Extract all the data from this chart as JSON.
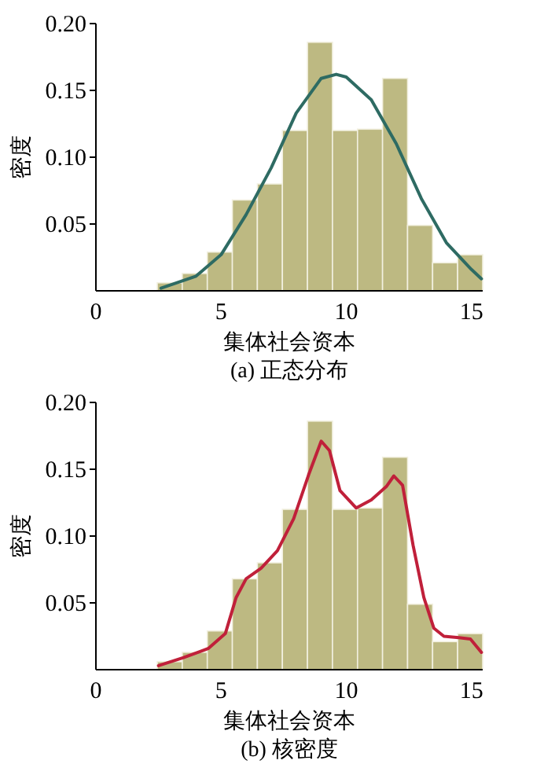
{
  "chart_data": [
    {
      "type": "histogram",
      "xlabel": "集体社会资本",
      "ylabel": "密度",
      "annotations": [
        "(a) 正态分布"
      ],
      "xlim": [
        0,
        15.45
      ],
      "ylim": [
        0,
        0.2
      ],
      "xticks": [
        0,
        5,
        10,
        15
      ],
      "yticks": [
        {
          "value": 0.05,
          "label": "0.05"
        },
        {
          "value": 0.1,
          "label": "0.10"
        },
        {
          "value": 0.15,
          "label": "0.15"
        },
        {
          "value": 0.2,
          "label": "0.20"
        }
      ],
      "grid": false,
      "bins": [
        2.45,
        3.45,
        4.45,
        5.45,
        6.45,
        7.45,
        8.45,
        9.45,
        10.45,
        11.45,
        12.45,
        13.45,
        14.45,
        15.45
      ],
      "series": [
        {
          "color": "#bdb982",
          "values": [
            0.006,
            0.013,
            0.029,
            0.068,
            0.08,
            0.12,
            0.186,
            0.12,
            0.121,
            0.159,
            0.049,
            0.021,
            0.027
          ]
        },
        {
          "type": "line",
          "color": "#2e6b63",
          "x": [
            2.6,
            4,
            5,
            6,
            7,
            8,
            9,
            9.6,
            10,
            11,
            12,
            13,
            14,
            15,
            15.4
          ],
          "values": [
            0.002,
            0.011,
            0.027,
            0.057,
            0.092,
            0.133,
            0.159,
            0.162,
            0.16,
            0.143,
            0.11,
            0.069,
            0.036,
            0.016,
            0.009
          ]
        }
      ]
    },
    {
      "type": "histogram",
      "xlabel": "集体社会资本",
      "ylabel": "密度",
      "annotations": [
        "(b) 核密度"
      ],
      "xlim": [
        0,
        15.45
      ],
      "ylim": [
        0,
        0.2
      ],
      "xticks": [
        0,
        5,
        10,
        15
      ],
      "yticks": [
        {
          "value": 0.05,
          "label": "0.05"
        },
        {
          "value": 0.1,
          "label": "0.10"
        },
        {
          "value": 0.15,
          "label": "0.15"
        },
        {
          "value": 0.2,
          "label": "0.20"
        }
      ],
      "grid": false,
      "bins": [
        2.45,
        3.45,
        4.45,
        5.45,
        6.45,
        7.45,
        8.45,
        9.45,
        10.45,
        11.45,
        12.45,
        13.45,
        14.45,
        15.45
      ],
      "series": [
        {
          "color": "#bdb982",
          "values": [
            0.006,
            0.013,
            0.029,
            0.068,
            0.08,
            0.12,
            0.186,
            0.12,
            0.121,
            0.159,
            0.049,
            0.021,
            0.027
          ]
        },
        {
          "type": "line",
          "color": "#c0203a",
          "x": [
            2.5,
            3.5,
            4.5,
            5.17,
            5.6,
            6,
            6.6,
            7.25,
            7.9,
            8.5,
            9,
            9.33,
            9.75,
            10.4,
            11,
            11.6,
            11.9,
            12.25,
            12.67,
            13.1,
            13.5,
            13.9,
            14.5,
            14.96,
            15.4
          ],
          "values": [
            0.003,
            0.009,
            0.016,
            0.027,
            0.054,
            0.068,
            0.076,
            0.089,
            0.113,
            0.146,
            0.171,
            0.164,
            0.134,
            0.121,
            0.127,
            0.137,
            0.145,
            0.138,
            0.093,
            0.054,
            0.031,
            0.025,
            0.024,
            0.023,
            0.013
          ]
        }
      ]
    }
  ]
}
